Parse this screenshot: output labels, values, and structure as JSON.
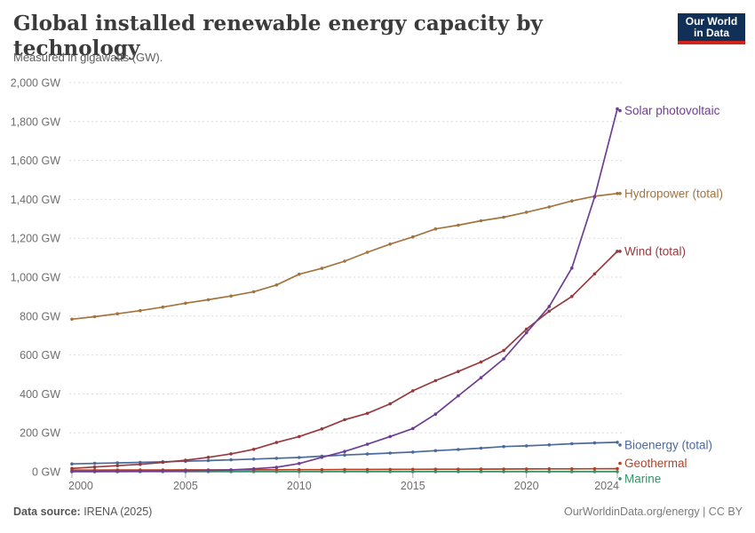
{
  "logo": {
    "line1": "Our World",
    "line2": "in Data"
  },
  "footer": {
    "source_label": "Data source:",
    "source_value": " IRENA (2025)",
    "right_text": "OurWorldinData.org/energy | CC BY"
  },
  "chart_data": {
    "type": "line",
    "title": "Global installed renewable energy capacity by technology",
    "subtitle": "Measured in gigawatts (GW).",
    "unit": "GW",
    "grid": "horizontal-dashed",
    "legend_position": "right-edge-labels",
    "x": [
      2000,
      2001,
      2002,
      2003,
      2004,
      2005,
      2006,
      2007,
      2008,
      2009,
      2010,
      2011,
      2012,
      2013,
      2014,
      2015,
      2016,
      2017,
      2018,
      2019,
      2020,
      2021,
      2022,
      2023,
      2024
    ],
    "xlim": [
      2000,
      2024
    ],
    "ylim": [
      0,
      2000
    ],
    "xticks": {
      "values": [
        2000,
        2005,
        2010,
        2015,
        2020,
        2024
      ],
      "labels": [
        "2000",
        "2005",
        "2010",
        "2015",
        "2020",
        "2024"
      ]
    },
    "yticks": {
      "values": [
        0,
        200,
        400,
        600,
        800,
        1000,
        1200,
        1400,
        1600,
        1800,
        2000
      ],
      "labels": [
        "0 GW",
        "200 GW",
        "400 GW",
        "600 GW",
        "800 GW",
        "1,000 GW",
        "1,200 GW",
        "1,400 GW",
        "1,600 GW",
        "1,800 GW",
        "2,000 GW"
      ]
    },
    "series": [
      {
        "name": "Solar photovoltaic",
        "color": "#6D3E91",
        "values": [
          1,
          1,
          2,
          3,
          4,
          5,
          7,
          9,
          15,
          23,
          42,
          74,
          104,
          141,
          181,
          222,
          296,
          390,
          483,
          580,
          714,
          849,
          1047,
          1412,
          1865
        ]
      },
      {
        "name": "Hydropower (total)",
        "color": "#A2753F",
        "values": [
          784,
          797,
          812,
          828,
          846,
          866,
          884,
          903,
          925,
          960,
          1015,
          1045,
          1082,
          1128,
          1170,
          1207,
          1248,
          1267,
          1290,
          1308,
          1334,
          1361,
          1392,
          1416,
          1430
        ]
      },
      {
        "name": "Wind (total)",
        "color": "#963A3E",
        "values": [
          17,
          24,
          31,
          38,
          48,
          59,
          74,
          92,
          115,
          150,
          181,
          220,
          267,
          300,
          349,
          416,
          468,
          515,
          564,
          623,
          733,
          825,
          901,
          1017,
          1133
        ]
      },
      {
        "name": "Bioenergy (total)",
        "color": "#4C6A9C",
        "values": [
          40,
          43,
          45,
          48,
          51,
          54,
          57,
          61,
          65,
          69,
          73,
          80,
          86,
          91,
          96,
          101,
          108,
          114,
          121,
          129,
          133,
          138,
          144,
          148,
          151
        ]
      },
      {
        "name": "Geothermal",
        "color": "#B73F25",
        "values": [
          8.2,
          8.4,
          8.6,
          8.8,
          8.9,
          9.1,
          9.3,
          9.5,
          9.8,
          10.1,
          10.4,
          10.7,
          11.2,
          11.5,
          11.9,
          12.3,
          12.7,
          13,
          13.3,
          13.9,
          14.1,
          14.5,
          14.8,
          15,
          15.4
        ]
      },
      {
        "name": "Marine",
        "color": "#359469",
        "values": [
          0.3,
          0.3,
          0.3,
          0.3,
          0.3,
          0.3,
          0.3,
          0.3,
          0.3,
          0.3,
          0.3,
          0.5,
          0.5,
          0.5,
          0.5,
          0.5,
          0.5,
          0.5,
          0.5,
          0.5,
          0.5,
          0.5,
          0.5,
          0.6,
          0.6
        ]
      }
    ]
  }
}
